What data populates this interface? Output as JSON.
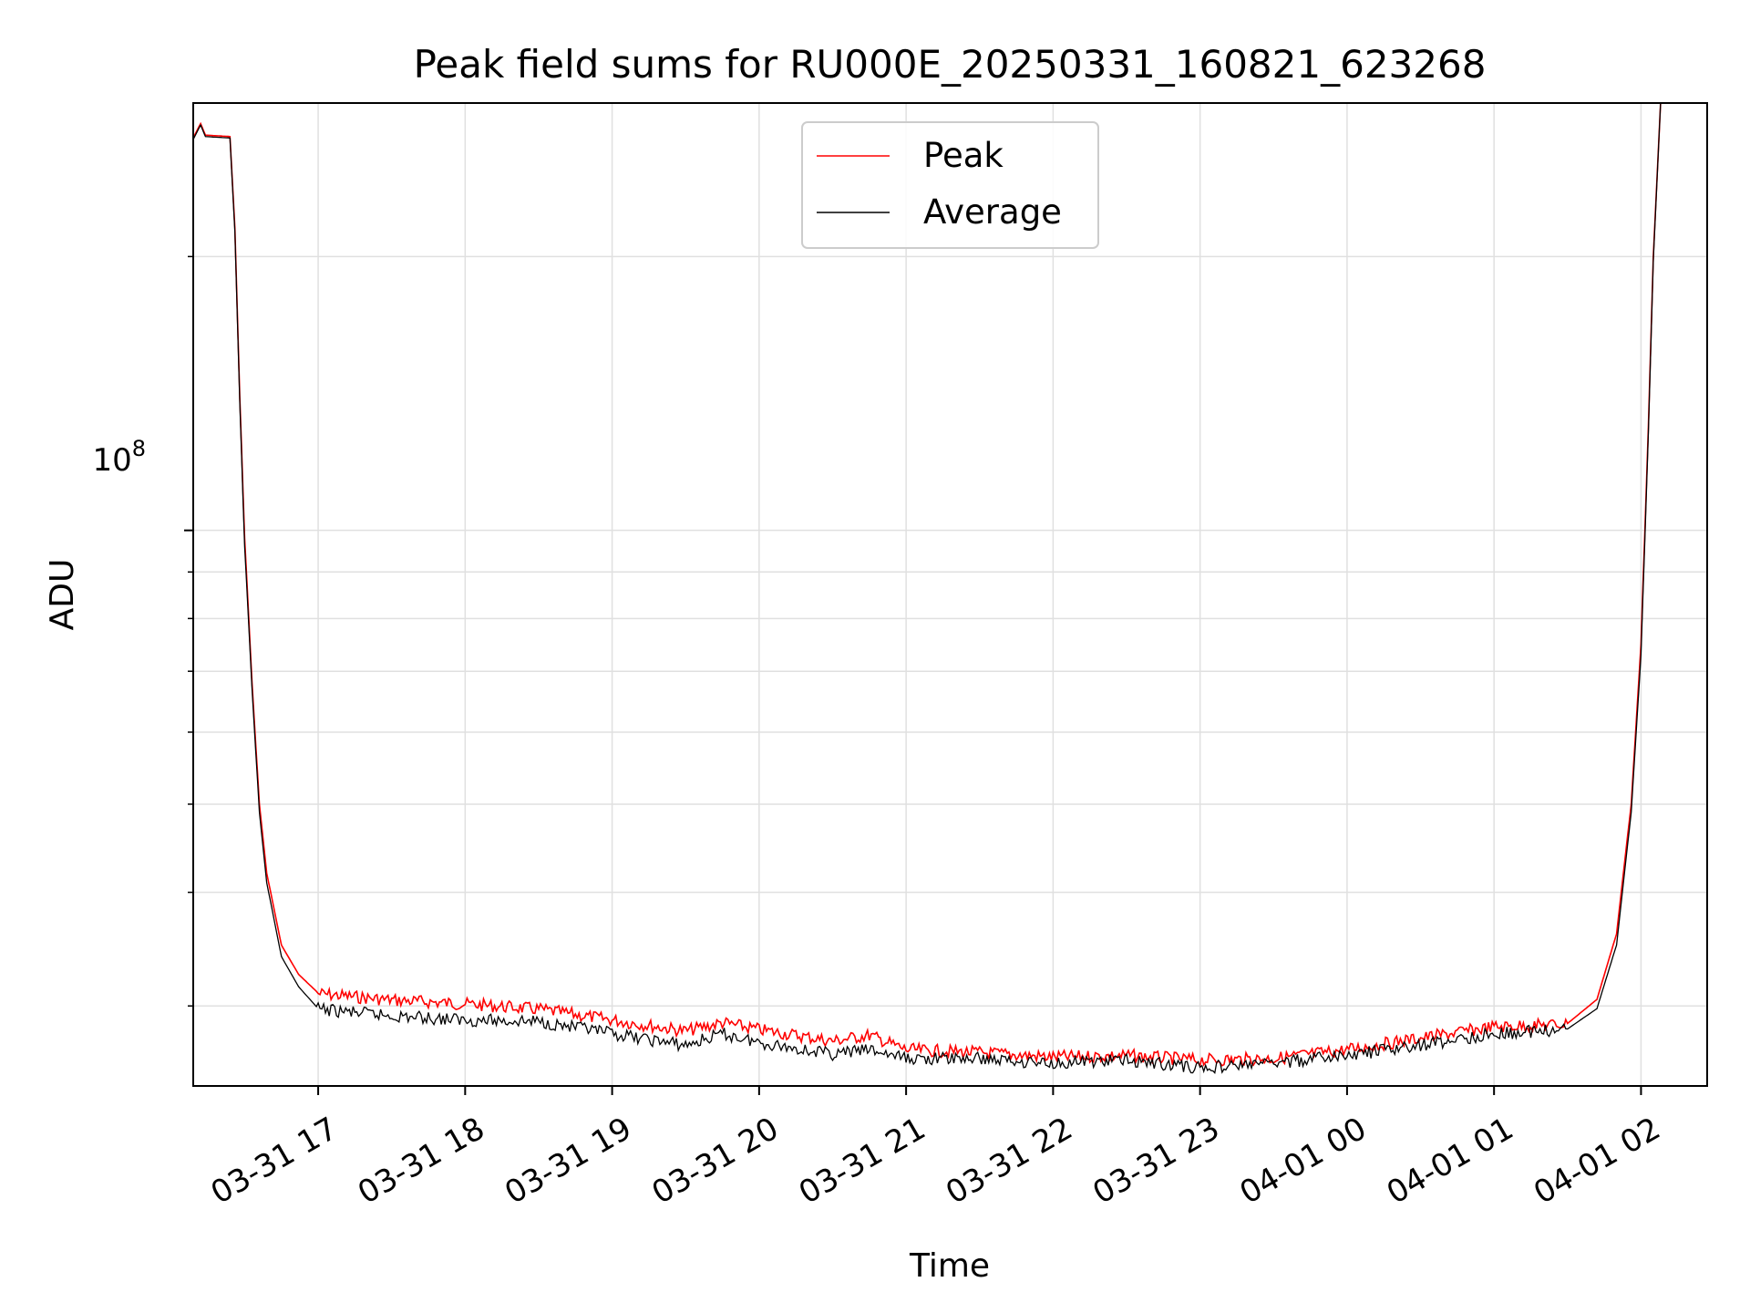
{
  "chart_data": {
    "type": "line",
    "title": "Peak field sums for RU000E_20250331_160821_623268",
    "xlabel": "Time",
    "ylabel": "ADU",
    "y_scale": "log",
    "y_tick_label": "10^8",
    "y_tick_base": "10",
    "y_tick_exp": "8",
    "xlim": [
      "2025-03-31 16:09",
      "2025-04-01 02:27"
    ],
    "ylim": [
      24500000,
      295000000
    ],
    "x_tick_labels": [
      "03-31 17",
      "03-31 18",
      "03-31 19",
      "03-31 20",
      "03-31 21",
      "03-31 22",
      "03-31 23",
      "04-01 00",
      "04-01 01",
      "04-01 02"
    ],
    "x_tick_times": [
      "2025-03-31 17:00",
      "2025-03-31 18:00",
      "2025-03-31 19:00",
      "2025-03-31 20:00",
      "2025-03-31 21:00",
      "2025-03-31 22:00",
      "2025-03-31 23:00",
      "2025-04-01 00:00",
      "2025-04-01 01:00",
      "2025-04-01 02:00"
    ],
    "grid": true,
    "legend_position": "top-center",
    "series": [
      {
        "name": "Peak",
        "color": "#ff0000",
        "points": [
          [
            "2025-03-31 16:09",
            270000000
          ],
          [
            "2025-03-31 16:12",
            280000000
          ],
          [
            "2025-03-31 16:14",
            272000000
          ],
          [
            "2025-03-31 16:24",
            271000000
          ],
          [
            "2025-03-31 16:26",
            215000000
          ],
          [
            "2025-03-31 16:28",
            140000000
          ],
          [
            "2025-03-31 16:30",
            98000000
          ],
          [
            "2025-03-31 16:33",
            68000000
          ],
          [
            "2025-03-31 16:36",
            50000000
          ],
          [
            "2025-03-31 16:39",
            42000000
          ],
          [
            "2025-03-31 16:45",
            35000000
          ],
          [
            "2025-03-31 16:52",
            32500000
          ],
          [
            "2025-03-31 17:00",
            31000000
          ],
          [
            "2025-03-31 17:30",
            30500000
          ],
          [
            "2025-03-31 18:00",
            30200000
          ],
          [
            "2025-03-31 18:30",
            29800000
          ],
          [
            "2025-03-31 19:00",
            29000000
          ],
          [
            "2025-03-31 19:30",
            28200000
          ],
          [
            "2025-03-31 19:45",
            28800000
          ],
          [
            "2025-03-31 20:00",
            28300000
          ],
          [
            "2025-03-31 20:30",
            27500000
          ],
          [
            "2025-03-31 20:45",
            27900000
          ],
          [
            "2025-03-31 21:00",
            26900000
          ],
          [
            "2025-03-31 21:30",
            26700000
          ],
          [
            "2025-03-31 22:00",
            26400000
          ],
          [
            "2025-03-31 22:30",
            26500000
          ],
          [
            "2025-03-31 23:00",
            26200000
          ],
          [
            "2025-03-31 23:30",
            26300000
          ],
          [
            "2025-04-01 00:00",
            26900000
          ],
          [
            "2025-04-01 00:30",
            27700000
          ],
          [
            "2025-04-01 01:00",
            28500000
          ],
          [
            "2025-04-01 01:30",
            28700000
          ],
          [
            "2025-04-01 01:42",
            30500000
          ],
          [
            "2025-04-01 01:50",
            36000000
          ],
          [
            "2025-04-01 01:56",
            50000000
          ],
          [
            "2025-04-01 02:00",
            75000000
          ],
          [
            "2025-04-01 02:03",
            130000000
          ],
          [
            "2025-04-01 02:05",
            200000000
          ],
          [
            "2025-04-01 02:08",
            295000000
          ]
        ]
      },
      {
        "name": "Average",
        "color": "#000000",
        "points": [
          [
            "2025-03-31 16:09",
            269000000
          ],
          [
            "2025-03-31 16:12",
            279000000
          ],
          [
            "2025-03-31 16:14",
            271000000
          ],
          [
            "2025-03-31 16:24",
            270000000
          ],
          [
            "2025-03-31 16:26",
            213000000
          ],
          [
            "2025-03-31 16:28",
            138000000
          ],
          [
            "2025-03-31 16:30",
            96000000
          ],
          [
            "2025-03-31 16:33",
            67000000
          ],
          [
            "2025-03-31 16:36",
            49000000
          ],
          [
            "2025-03-31 16:39",
            41000000
          ],
          [
            "2025-03-31 16:45",
            34000000
          ],
          [
            "2025-03-31 16:52",
            31500000
          ],
          [
            "2025-03-31 17:00",
            29800000
          ],
          [
            "2025-03-31 17:30",
            29300000
          ],
          [
            "2025-03-31 18:00",
            29000000
          ],
          [
            "2025-03-31 18:30",
            28900000
          ],
          [
            "2025-03-31 19:00",
            28000000
          ],
          [
            "2025-03-31 19:30",
            27200000
          ],
          [
            "2025-03-31 19:45",
            28000000
          ],
          [
            "2025-03-31 20:00",
            27400000
          ],
          [
            "2025-03-31 20:30",
            26600000
          ],
          [
            "2025-03-31 20:45",
            26900000
          ],
          [
            "2025-03-31 21:00",
            26300000
          ],
          [
            "2025-03-31 21:30",
            26300000
          ],
          [
            "2025-03-31 22:00",
            26000000
          ],
          [
            "2025-03-31 22:30",
            26200000
          ],
          [
            "2025-03-31 23:00",
            25700000
          ],
          [
            "2025-03-31 23:30",
            26000000
          ],
          [
            "2025-04-01 00:00",
            26500000
          ],
          [
            "2025-04-01 00:30",
            27200000
          ],
          [
            "2025-04-01 01:00",
            28000000
          ],
          [
            "2025-04-01 01:30",
            28300000
          ],
          [
            "2025-04-01 01:42",
            29800000
          ],
          [
            "2025-04-01 01:50",
            35000000
          ],
          [
            "2025-04-01 01:56",
            49000000
          ],
          [
            "2025-04-01 02:00",
            73000000
          ],
          [
            "2025-04-01 02:03",
            128000000
          ],
          [
            "2025-04-01 02:05",
            198000000
          ],
          [
            "2025-04-01 02:08",
            295000000
          ]
        ]
      }
    ]
  }
}
